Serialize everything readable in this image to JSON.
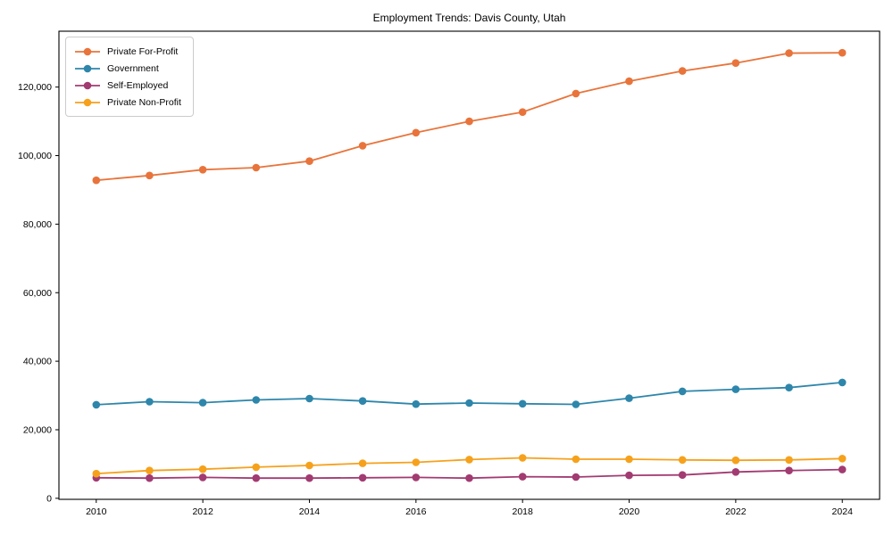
{
  "chart_data": {
    "type": "line",
    "title": "Employment Trends: Davis County, Utah",
    "xlabel": "",
    "ylabel": "",
    "x": [
      2010,
      2011,
      2012,
      2013,
      2014,
      2015,
      2016,
      2017,
      2018,
      2019,
      2020,
      2021,
      2022,
      2023,
      2024
    ],
    "series": [
      {
        "name": "Private For-Profit",
        "color": "#E8743B",
        "values": [
          92800,
          94200,
          95900,
          96500,
          98400,
          102900,
          106700,
          110000,
          112700,
          118100,
          121700,
          124700,
          127000,
          129900,
          130000
        ]
      },
      {
        "name": "Government",
        "color": "#2E86AB",
        "values": [
          27300,
          28200,
          27900,
          28700,
          29100,
          28400,
          27500,
          27800,
          27600,
          27400,
          29200,
          31200,
          31800,
          32300,
          33800
        ]
      },
      {
        "name": "Self-Employed",
        "color": "#A23B72",
        "values": [
          6000,
          5900,
          6100,
          5900,
          5900,
          6000,
          6100,
          5900,
          6300,
          6200,
          6700,
          6800,
          7700,
          8100,
          8400
        ]
      },
      {
        "name": "Private Non-Profit",
        "color": "#F6A11C",
        "values": [
          7200,
          8100,
          8500,
          9100,
          9600,
          10200,
          10500,
          11300,
          11800,
          11400,
          11400,
          11200,
          11100,
          11200,
          11600
        ]
      }
    ],
    "xticks": [
      2010,
      2012,
      2014,
      2016,
      2018,
      2020,
      2022,
      2024
    ],
    "xtick_labels": [
      "2010",
      "2012",
      "2014",
      "2016",
      "2018",
      "2020",
      "2022",
      "2024"
    ],
    "yticks": [
      0,
      20000,
      40000,
      60000,
      80000,
      100000,
      120000
    ],
    "ytick_labels": [
      "0",
      "20,000",
      "40,000",
      "60,000",
      "80,000",
      "100,000",
      "120,000"
    ],
    "xlim": [
      2009.3,
      2024.7
    ],
    "ylim": [
      -300,
      136300
    ],
    "grid": false,
    "legend_position": "upper-left",
    "marker": "circle",
    "axis_color": "#000000"
  }
}
